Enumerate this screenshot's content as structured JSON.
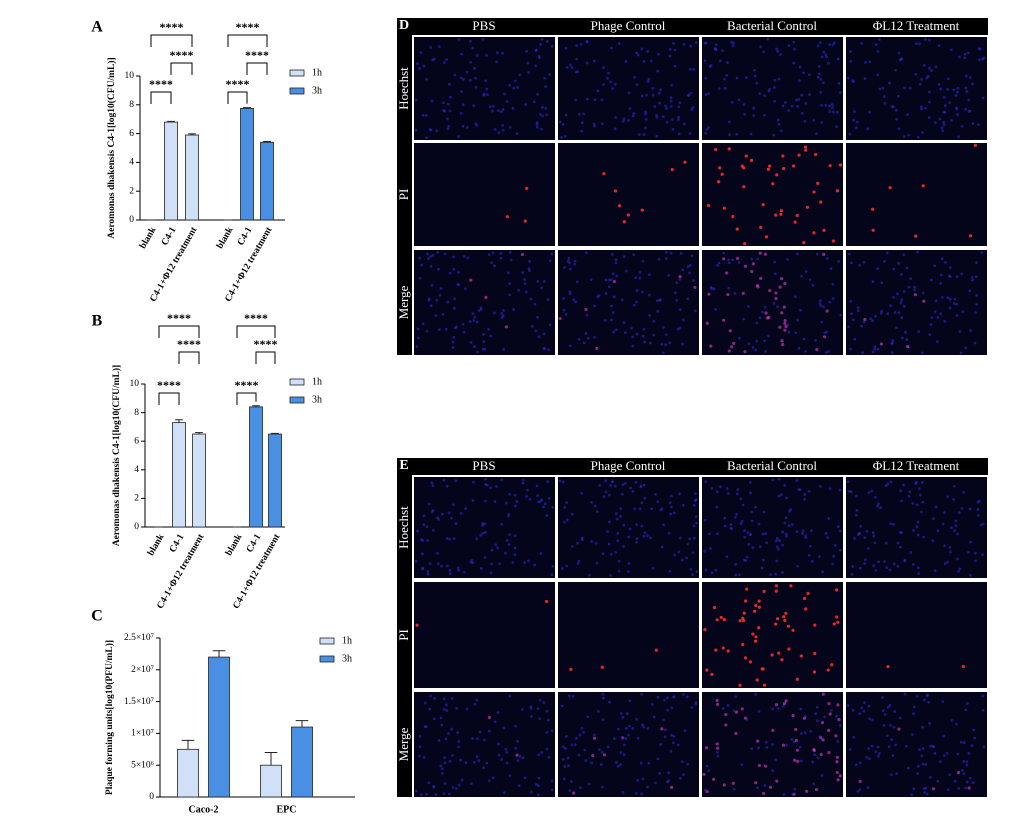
{
  "chart_data": [
    {
      "type": "bar",
      "panel": "A",
      "ylabel": "Aeromonas dhakensis C4-1[log10(CFU/mL)]",
      "categories": [
        "blank",
        "C4-1",
        "C4-1+Φ12 treatment"
      ],
      "series": [
        {
          "name": "1h",
          "color": "#cfe0f7",
          "values": [
            0,
            6.8,
            5.9
          ],
          "errors": [
            0,
            0.05,
            0.08
          ]
        },
        {
          "name": "3h",
          "color": "#4a90e2",
          "values": [
            0,
            7.75,
            5.4
          ],
          "errors": [
            0,
            0.05,
            0.05
          ]
        }
      ],
      "ylim": [
        0,
        10
      ],
      "yticks": [
        0,
        2,
        4,
        6,
        8,
        10
      ],
      "annotations": [
        "****",
        "****",
        "****",
        "****",
        "****",
        "****"
      ]
    },
    {
      "type": "bar",
      "panel": "B",
      "ylabel": "Aeromonas dhakensis C4-1[log10(CFU/mL)]",
      "categories": [
        "blank",
        "C4-1",
        "C4-1+Φ12 treatment"
      ],
      "series": [
        {
          "name": "1h",
          "color": "#cfe0f7",
          "values": [
            0,
            7.3,
            6.5
          ],
          "errors": [
            0,
            0.2,
            0.1
          ]
        },
        {
          "name": "3h",
          "color": "#4a90e2",
          "values": [
            0,
            8.4,
            6.5
          ],
          "errors": [
            0,
            0.08,
            0.05
          ]
        }
      ],
      "ylim": [
        0,
        10
      ],
      "yticks": [
        0,
        2,
        4,
        6,
        8,
        10
      ],
      "annotations": [
        "****",
        "****",
        "****",
        "****",
        "****",
        "****"
      ]
    },
    {
      "type": "grouped-bar",
      "panel": "C",
      "ylabel": "Plaque forming units[log10(PFU/mL)]",
      "categories": [
        "Caco-2",
        "EPC"
      ],
      "series": [
        {
          "name": "1h",
          "color": "#cfe0f7",
          "values": [
            7500000,
            5000000
          ],
          "errors": [
            1400000,
            2000000
          ]
        },
        {
          "name": "3h",
          "color": "#4a90e2",
          "values": [
            22000000,
            11000000
          ],
          "errors": [
            1000000,
            1000000
          ]
        }
      ],
      "ylim": [
        0,
        25000000
      ],
      "yticks": [
        0,
        {
          "value": 5000000,
          "label": "5×10⁶"
        },
        {
          "value": 10000000,
          "label": "1×10⁷"
        },
        {
          "value": 15000000,
          "label": "1.5×10⁷"
        },
        {
          "value": 20000000,
          "label": "2×10⁷"
        },
        {
          "value": 25000000,
          "label": "2.5×10⁷"
        }
      ]
    }
  ],
  "panels": [
    {
      "label": "D",
      "columns": [
        "PBS",
        "Phage Control",
        "Bacterial Control",
        "ΦL12 Treatment"
      ],
      "rows": [
        "Hoechst",
        "PI",
        "Merge"
      ]
    },
    {
      "label": "E",
      "columns": [
        "PBS",
        "Phage Control",
        "Bacterial Control",
        "ΦL12 Treatment"
      ],
      "rows": [
        "Hoechst",
        "PI",
        "Merge"
      ]
    }
  ]
}
